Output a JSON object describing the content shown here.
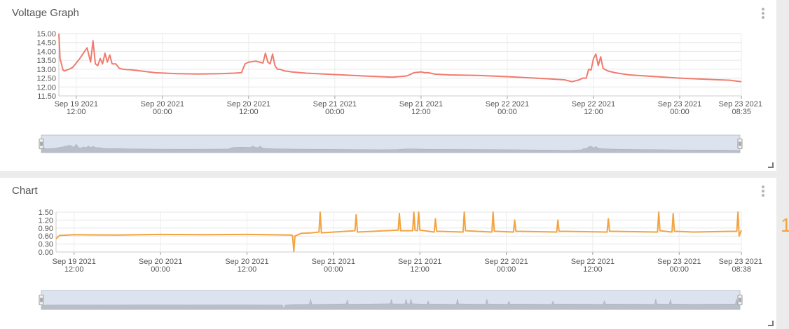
{
  "panels": [
    {
      "title": "Voltage Graph"
    },
    {
      "title": "Chart"
    }
  ],
  "edge_glyph": "1",
  "chart_data": [
    {
      "type": "line",
      "title": "Voltage Graph",
      "xlabel": "",
      "ylabel": "",
      "ylim": [
        11.5,
        15.0
      ],
      "yticks": [
        "15.00",
        "14.50",
        "14.00",
        "13.50",
        "13.00",
        "12.50",
        "12.00",
        "11.50"
      ],
      "xticks": [
        {
          "line1": "Sep 19 2021",
          "line2": "12:00"
        },
        {
          "line1": "Sep 20 2021",
          "line2": "00:00"
        },
        {
          "line1": "Sep 20 2021",
          "line2": "12:00"
        },
        {
          "line1": "Sep 21 2021",
          "line2": "00:00"
        },
        {
          "line1": "Sep 21 2021",
          "line2": "12:00"
        },
        {
          "line1": "Sep 22 2021",
          "line2": "00:00"
        },
        {
          "line1": "Sep 22 2021",
          "line2": "12:00"
        },
        {
          "line1": "Sep 23 2021",
          "line2": "00:00"
        },
        {
          "line1": "Sep 23 2021",
          "line2": "08:35"
        }
      ],
      "grid": true,
      "color": "#f07b6e",
      "navigator": true,
      "series": [
        {
          "x": [
            "2021-09-19 09:35",
            "2021-09-19 09:45",
            "2021-09-19 10:10",
            "2021-09-19 10:20",
            "2021-09-19 10:40",
            "2021-09-19 11:00",
            "2021-09-19 11:30",
            "2021-09-19 12:30",
            "2021-09-19 13:30",
            "2021-09-19 14:00",
            "2021-09-19 14:20",
            "2021-09-19 14:40",
            "2021-09-19 15:00",
            "2021-09-19 15:20",
            "2021-09-19 15:40",
            "2021-09-19 16:00",
            "2021-09-19 16:20",
            "2021-09-19 16:40",
            "2021-09-19 17:00",
            "2021-09-19 17:30",
            "2021-09-19 18:00",
            "2021-09-19 18:30",
            "2021-09-19 19:00",
            "2021-09-19 19:30",
            "2021-09-19 20:00",
            "2021-09-19 21:00",
            "2021-09-19 23:00",
            "2021-09-20 02:00",
            "2021-09-20 05:00",
            "2021-09-20 08:00",
            "2021-09-20 10:00",
            "2021-09-20 11:00",
            "2021-09-20 11:30",
            "2021-09-20 11:45",
            "2021-09-20 12:00",
            "2021-09-20 13:00",
            "2021-09-20 14:00",
            "2021-09-20 14:20",
            "2021-09-20 14:40",
            "2021-09-20 15:00",
            "2021-09-20 15:20",
            "2021-09-20 15:40",
            "2021-09-20 16:00",
            "2021-09-20 16:20",
            "2021-09-20 16:40",
            "2021-09-20 17:00",
            "2021-09-20 17:30",
            "2021-09-20 18:00",
            "2021-09-20 20:00",
            "2021-09-21 00:00",
            "2021-09-21 04:00",
            "2021-09-21 08:00",
            "2021-09-21 10:00",
            "2021-09-21 11:00",
            "2021-09-21 12:00",
            "2021-09-21 12:30",
            "2021-09-21 13:00",
            "2021-09-21 14:00",
            "2021-09-21 16:00",
            "2021-09-21 20:00",
            "2021-09-22 00:00",
            "2021-09-22 03:00",
            "2021-09-22 06:00",
            "2021-09-22 08:00",
            "2021-09-22 09:00",
            "2021-09-22 10:00",
            "2021-09-22 10:30",
            "2021-09-22 11:00",
            "2021-09-22 11:20",
            "2021-09-22 11:40",
            "2021-09-22 12:00",
            "2021-09-22 12:20",
            "2021-09-22 12:40",
            "2021-09-22 13:00",
            "2021-09-22 13:20",
            "2021-09-22 14:00",
            "2021-09-22 15:00",
            "2021-09-22 17:00",
            "2021-09-22 20:00",
            "2021-09-23 00:00",
            "2021-09-23 04:00",
            "2021-09-23 07:00",
            "2021-09-23 08:35"
          ],
          "y": [
            15.0,
            13.6,
            12.95,
            12.9,
            12.95,
            13.0,
            13.1,
            13.6,
            14.2,
            13.4,
            14.6,
            13.3,
            13.2,
            13.6,
            13.3,
            13.9,
            13.4,
            13.8,
            13.3,
            13.3,
            13.05,
            13.0,
            12.98,
            12.97,
            12.95,
            12.9,
            12.8,
            12.75,
            12.73,
            12.75,
            12.78,
            12.8,
            13.3,
            13.35,
            13.4,
            13.45,
            13.35,
            13.9,
            13.4,
            13.3,
            13.85,
            13.2,
            13.0,
            13.0,
            12.95,
            12.9,
            12.88,
            12.85,
            12.78,
            12.7,
            12.62,
            12.55,
            12.62,
            12.8,
            12.85,
            12.8,
            12.8,
            12.72,
            12.68,
            12.65,
            12.58,
            12.52,
            12.45,
            12.4,
            12.3,
            12.4,
            12.5,
            12.5,
            13.0,
            12.95,
            13.6,
            13.85,
            13.2,
            13.7,
            13.05,
            12.9,
            12.8,
            12.68,
            12.6,
            12.5,
            12.43,
            12.38,
            12.3
          ]
        }
      ]
    },
    {
      "type": "line",
      "title": "Chart",
      "xlabel": "",
      "ylabel": "",
      "ylim": [
        0.0,
        1.5
      ],
      "yticks": [
        "1.50",
        "1.20",
        "0.90",
        "0.60",
        "0.30",
        "0.00"
      ],
      "xticks": [
        {
          "line1": "Sep 19 2021",
          "line2": "12:00"
        },
        {
          "line1": "Sep 20 2021",
          "line2": "00:00"
        },
        {
          "line1": "Sep 20 2021",
          "line2": "12:00"
        },
        {
          "line1": "Sep 21 2021",
          "line2": "00:00"
        },
        {
          "line1": "Sep 21 2021",
          "line2": "12:00"
        },
        {
          "line1": "Sep 22 2021",
          "line2": "00:00"
        },
        {
          "line1": "Sep 22 2021",
          "line2": "12:00"
        },
        {
          "line1": "Sep 23 2021",
          "line2": "00:00"
        },
        {
          "line1": "Sep 23 2021",
          "line2": "08:38"
        }
      ],
      "grid": true,
      "color": "#f4a340",
      "navigator": true,
      "series": [
        {
          "x": [
            "2021-09-19 09:30",
            "2021-09-19 10:00",
            "2021-09-19 12:00",
            "2021-09-19 18:00",
            "2021-09-20 00:00",
            "2021-09-20 06:00",
            "2021-09-20 12:00",
            "2021-09-20 18:00",
            "2021-09-20 18:20",
            "2021-09-20 18:30",
            "2021-09-20 18:40",
            "2021-09-20 19:30",
            "2021-09-20 21:00",
            "2021-09-20 22:00",
            "2021-09-20 22:10",
            "2021-09-20 22:20",
            "2021-09-21 03:00",
            "2021-09-21 03:10",
            "2021-09-21 03:20",
            "2021-09-21 09:00",
            "2021-09-21 09:10",
            "2021-09-21 09:20",
            "2021-09-21 11:00",
            "2021-09-21 11:10",
            "2021-09-21 11:20",
            "2021-09-21 11:40",
            "2021-09-21 11:50",
            "2021-09-21 12:00",
            "2021-09-21 14:00",
            "2021-09-21 14:10",
            "2021-09-21 14:20",
            "2021-09-21 18:00",
            "2021-09-21 18:10",
            "2021-09-21 18:20",
            "2021-09-21 22:00",
            "2021-09-21 22:10",
            "2021-09-21 22:20",
            "2021-09-22 01:00",
            "2021-09-22 01:10",
            "2021-09-22 01:20",
            "2021-09-22 07:00",
            "2021-09-22 07:10",
            "2021-09-22 07:20",
            "2021-09-22 14:00",
            "2021-09-22 14:10",
            "2021-09-22 14:20",
            "2021-09-22 21:00",
            "2021-09-22 21:10",
            "2021-09-22 21:20",
            "2021-09-22 23:00",
            "2021-09-22 23:10",
            "2021-09-22 23:20",
            "2021-09-23 02:00",
            "2021-09-23 08:00",
            "2021-09-23 08:10",
            "2021-09-23 08:20",
            "2021-09-23 08:38"
          ],
          "y": [
            0.5,
            0.62,
            0.65,
            0.64,
            0.66,
            0.65,
            0.66,
            0.64,
            0.62,
            0.02,
            0.6,
            0.7,
            0.72,
            0.75,
            1.5,
            0.72,
            0.8,
            1.4,
            0.75,
            0.82,
            1.45,
            0.8,
            0.8,
            1.5,
            0.82,
            0.8,
            1.5,
            0.82,
            0.75,
            1.25,
            0.78,
            0.75,
            1.5,
            0.8,
            0.75,
            1.5,
            0.78,
            0.75,
            1.2,
            0.78,
            0.75,
            1.2,
            0.78,
            0.75,
            1.25,
            0.78,
            0.75,
            1.5,
            0.8,
            0.75,
            1.45,
            0.78,
            0.75,
            0.78,
            1.5,
            0.6,
            0.82
          ]
        }
      ]
    }
  ]
}
